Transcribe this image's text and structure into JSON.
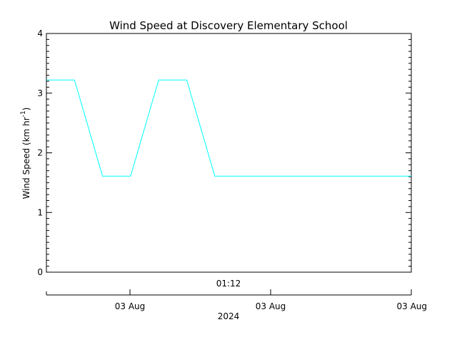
{
  "chart_data": {
    "type": "line",
    "title": "Wind Speed at Discovery Elementary School",
    "ylabel": {
      "main": "Wind Speed (km hr",
      "sup": "-1",
      "tail": ")"
    },
    "ylim": [
      0,
      4
    ],
    "y_ticks": [
      "0",
      "1",
      "2",
      "3",
      "4"
    ],
    "x_time_label": "01:12",
    "x_date_ticks": [
      "03 Aug",
      "03 Aug",
      "03 Aug"
    ],
    "x_year_label": "2024",
    "series": [
      {
        "color": "#00ffff",
        "x": [
          0,
          1,
          2,
          3,
          4,
          5,
          6,
          13
        ],
        "y": [
          3.22,
          3.22,
          1.61,
          1.61,
          3.22,
          3.22,
          1.61,
          1.61
        ]
      }
    ]
  }
}
